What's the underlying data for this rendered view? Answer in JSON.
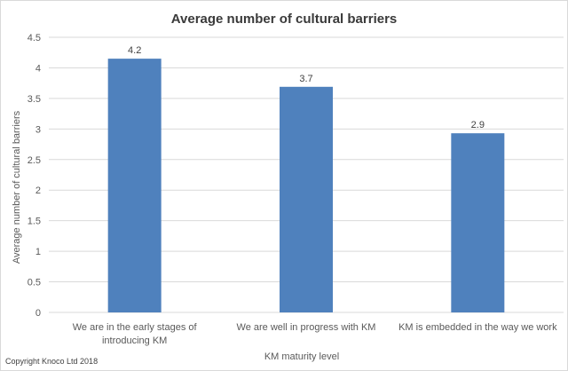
{
  "chart_data": {
    "type": "bar",
    "title": "Average number of cultural barriers",
    "xlabel": "KM maturity level",
    "ylabel": "Average number of cultural barriers",
    "categories": [
      [
        "We are in the early stages of",
        "introducing KM"
      ],
      [
        "We are well in progress with KM"
      ],
      [
        "KM is embedded in the way we work"
      ]
    ],
    "values": [
      4.15,
      3.69,
      2.93
    ],
    "data_labels": [
      "4.2",
      "3.7",
      "2.9"
    ],
    "yticks": [
      "0",
      "0.5",
      "1",
      "1.5",
      "2",
      "2.5",
      "3",
      "3.5",
      "4",
      "4.5"
    ],
    "ylim": [
      0,
      4.5
    ],
    "grid": true,
    "legend": "none",
    "bar_color": "#4f81bd"
  },
  "footer": {
    "copyright": "Copyright Knoco Ltd 2018"
  }
}
